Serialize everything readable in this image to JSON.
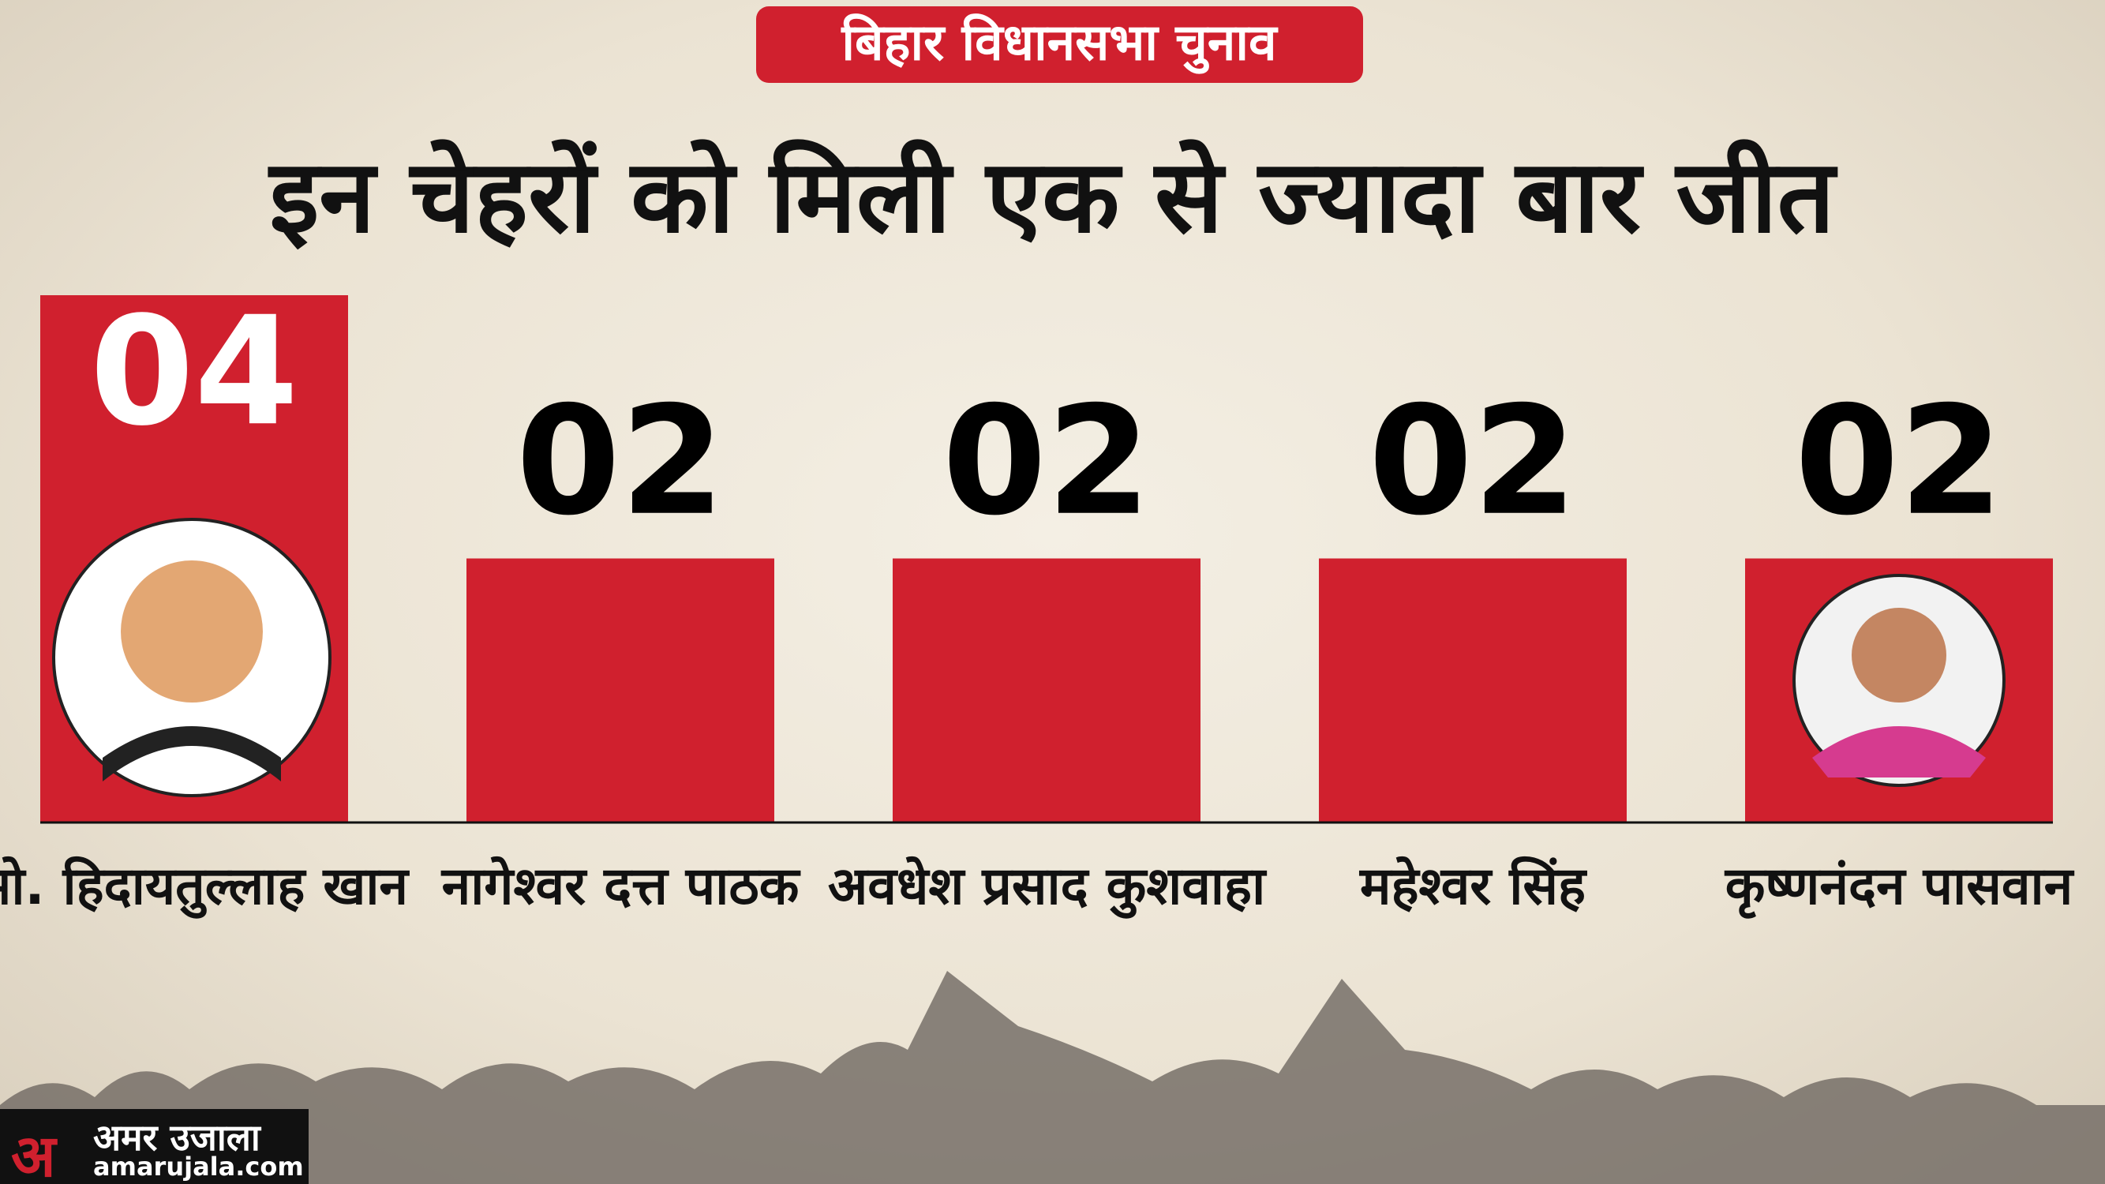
{
  "chart_data": {
    "type": "bar",
    "subtitle": "बिहार विधानसभा चुनाव",
    "title": "इन चेहरों को मिली एक से ज्यादा बार जीत",
    "categories": [
      "मो. हिदायतुल्लाह खान",
      "नागेश्वर दत्त पाठक",
      "अवधेश प्रसाद कुशवाहा",
      "महेश्वर सिंह",
      "कृष्णनंदन पासवान"
    ],
    "values": [
      4,
      2,
      2,
      2,
      2
    ],
    "value_labels": [
      "04",
      "02",
      "02",
      "02",
      "02"
    ],
    "color": "#d0202e"
  },
  "branding": {
    "logo": "अ",
    "name": "अमर उजाला",
    "url": "amarujala.com"
  }
}
